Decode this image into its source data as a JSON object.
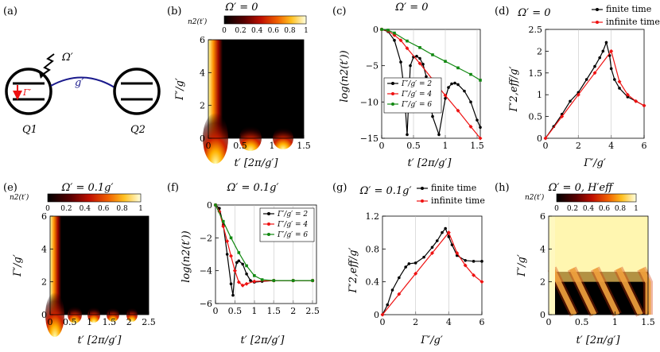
{
  "colors": {
    "black_series": "#000000",
    "red_series": "#ee1111",
    "green_series": "#118811",
    "coupler": "#1a1a8c"
  },
  "schematic": {
    "panel_label": "(a)",
    "omega_label": "Ω′",
    "coupling_label": "g′",
    "gamma_label": "Γ′",
    "qubit1_label": "Q1",
    "qubit2_label": "Q2"
  },
  "panels": {
    "b": {
      "label": "(b)",
      "title": "Ω′ = 0",
      "colorbar_label": "n2(t′)",
      "colorbar_ticks": [
        "0",
        "0.2",
        "0.4",
        "0.6",
        "0.8",
        "1"
      ],
      "ylabel": "Γ′/g′",
      "xlabel": "t′ [2π/g′]",
      "xticks": [
        "0",
        "0.5",
        "1",
        "1.5"
      ],
      "yticks": [
        "0",
        "2",
        "4",
        "6"
      ]
    },
    "c": {
      "label": "(c)",
      "title": "Ω′ = 0",
      "ylabel": "log(n2(t′))",
      "xlabel": "t′ [2π/g′]",
      "xticks": [
        "0",
        "0.5",
        "1",
        "1.5"
      ],
      "yticks": [
        "0",
        "−5",
        "−10",
        "−15"
      ],
      "legend": [
        "Γ′/g′ = 2",
        "Γ′/g′ = 4",
        "Γ′/g′ = 6"
      ]
    },
    "d": {
      "label": "(d)",
      "title": "Ω′ = 0",
      "ylabel": "Γ′2,eff/g′",
      "xlabel": "Γ′/g′",
      "xticks": [
        "0",
        "2",
        "4",
        "6"
      ],
      "yticks": [
        "0",
        "0.5",
        "1",
        "1.5",
        "2",
        "2.5"
      ],
      "legend": [
        "finite time",
        "infinite time"
      ]
    },
    "e": {
      "label": "(e)",
      "title": "Ω′ = 0.1g′",
      "colorbar_label": "n2(t′)",
      "colorbar_ticks": [
        "0",
        "0.2",
        "0.4",
        "0.6",
        "0.8",
        "1"
      ],
      "ylabel": "Γ′/g′",
      "xlabel": "t′ [2π/g′]",
      "xticks": [
        "0",
        "0.5",
        "1",
        "1.5",
        "2",
        "2.5"
      ],
      "yticks": [
        "0",
        "2",
        "4",
        "6"
      ]
    },
    "f": {
      "label": "(f)",
      "title": "Ω′ = 0.1g′",
      "ylabel": "log(n2(t′))",
      "xlabel": "t′ [2π/g′]",
      "xticks": [
        "0",
        "0.5",
        "1",
        "1.5",
        "2",
        "2.5"
      ],
      "yticks": [
        "0",
        "−2",
        "−4",
        "−6"
      ],
      "legend": [
        "Γ′/g′ = 2",
        "Γ′/g′ = 4",
        "Γ′/g′ = 6"
      ]
    },
    "g": {
      "label": "(g)",
      "title": "Ω′ = 0.1g′",
      "ylabel": "Γ′2,eff/g′",
      "xlabel": "Γ′/g′",
      "xticks": [
        "0",
        "2",
        "4",
        "6"
      ],
      "yticks": [
        "0",
        "0.4",
        "0.8",
        "1.2"
      ],
      "legend": [
        "finite time",
        "infinite time"
      ]
    },
    "h": {
      "label": "(h)",
      "title": "Ω′ = 0, H′eff",
      "colorbar_label": "n2(t′)",
      "colorbar_ticks": [
        "0",
        "0.2",
        "0.4",
        "0.6",
        "0.8",
        "1"
      ],
      "ylabel": "Γ′/g′",
      "xlabel": "t′ [2π/g′]",
      "xticks": [
        "0",
        "0.5",
        "1",
        "1.5"
      ],
      "yticks": [
        "0",
        "2",
        "4",
        "6"
      ]
    }
  },
  "chart_data": [
    {
      "panel": "c",
      "type": "line",
      "title": "Ω′ = 0",
      "xlabel": "t′ [2π/g′]",
      "ylabel": "log(n2(t′))",
      "xlim": [
        0,
        1.55
      ],
      "ylim": [
        -15,
        0
      ],
      "series": [
        {
          "name": "Γ′/g′ = 2",
          "x": [
            0,
            0.1,
            0.2,
            0.3,
            0.35,
            0.4,
            0.45,
            0.5,
            0.55,
            0.6,
            0.65,
            0.7,
            0.8,
            0.9,
            1.0,
            1.05,
            1.1,
            1.15,
            1.2,
            1.3,
            1.4,
            1.5,
            1.55
          ],
          "values": [
            0,
            -0.3,
            -1.5,
            -4.5,
            -8,
            -14.5,
            -5,
            -3.8,
            -3.7,
            -4.0,
            -4.8,
            -6.5,
            -12,
            -14.5,
            -9.5,
            -8,
            -7.5,
            -7.4,
            -7.6,
            -8.5,
            -10,
            -12.5,
            -13.5
          ]
        },
        {
          "name": "Γ′/g′ = 4",
          "x": [
            0,
            0.1,
            0.2,
            0.3,
            0.4,
            0.6,
            0.8,
            1.0,
            1.2,
            1.4,
            1.55
          ],
          "values": [
            0,
            -0.2,
            -0.8,
            -1.5,
            -2.6,
            -4.7,
            -6.9,
            -9.1,
            -11.2,
            -13.4,
            -15
          ]
        },
        {
          "name": "Γ′/g′ = 6",
          "x": [
            0,
            0.1,
            0.2,
            0.4,
            0.6,
            0.8,
            1.0,
            1.2,
            1.4,
            1.55
          ],
          "values": [
            0,
            -0.1,
            -0.5,
            -1.6,
            -2.5,
            -3.5,
            -4.4,
            -5.3,
            -6.2,
            -7.0
          ]
        }
      ]
    },
    {
      "panel": "d",
      "type": "scatter",
      "title": "Ω′ = 0",
      "xlabel": "Γ′/g′",
      "ylabel": "Γ′2,eff/g′",
      "xlim": [
        0,
        6
      ],
      "ylim": [
        0,
        2.5
      ],
      "series": [
        {
          "name": "finite time",
          "x": [
            0,
            0.5,
            1,
            1.5,
            2,
            2.5,
            3,
            3.3,
            3.5,
            3.7,
            3.9,
            4.0,
            4.2,
            4.5,
            5,
            5.5,
            6
          ],
          "values": [
            0,
            0.27,
            0.55,
            0.85,
            1.05,
            1.35,
            1.65,
            1.85,
            2.0,
            2.2,
            1.9,
            1.6,
            1.35,
            1.15,
            0.95,
            0.85,
            0.75
          ]
        },
        {
          "name": "infinite time",
          "x": [
            0,
            1,
            2,
            3,
            4,
            4.5,
            5,
            5.5,
            6
          ],
          "values": [
            0,
            0.5,
            1.0,
            1.5,
            2.0,
            1.3,
            1.0,
            0.85,
            0.75
          ]
        }
      ]
    },
    {
      "panel": "f",
      "type": "line",
      "title": "Ω′ = 0.1g′",
      "xlabel": "t′ [2π/g′]",
      "ylabel": "log(n2(t′))",
      "xlim": [
        0,
        2.6
      ],
      "ylim": [
        -6,
        0
      ],
      "series": [
        {
          "name": "Γ′/g′ = 2",
          "x": [
            0,
            0.1,
            0.2,
            0.3,
            0.4,
            0.45,
            0.5,
            0.55,
            0.6,
            0.7,
            0.8,
            0.9,
            1.0,
            1.2,
            1.5,
            2.0,
            2.5
          ],
          "values": [
            0,
            -0.2,
            -1.2,
            -3.0,
            -4.8,
            -5.5,
            -4.0,
            -3.5,
            -3.4,
            -3.6,
            -4.2,
            -4.6,
            -4.7,
            -4.65,
            -4.6,
            -4.6,
            -4.6
          ]
        },
        {
          "name": "Γ′/g′ = 4",
          "x": [
            0,
            0.1,
            0.2,
            0.3,
            0.4,
            0.5,
            0.6,
            0.7,
            0.8,
            1.0,
            1.5,
            2.0,
            2.5
          ],
          "values": [
            0,
            -0.4,
            -1.3,
            -2.2,
            -3.1,
            -4.0,
            -4.7,
            -4.9,
            -4.8,
            -4.65,
            -4.6,
            -4.6,
            -4.6
          ]
        },
        {
          "name": "Γ′/g′ = 6",
          "x": [
            0,
            0.2,
            0.4,
            0.6,
            0.8,
            1.0,
            1.2,
            1.5,
            2.0,
            2.5
          ],
          "values": [
            0,
            -1.0,
            -2.0,
            -2.9,
            -3.7,
            -4.3,
            -4.55,
            -4.6,
            -4.6,
            -4.6
          ]
        }
      ]
    },
    {
      "panel": "g",
      "type": "scatter",
      "title": "Ω′ = 0.1g′",
      "xlabel": "Γ′/g′",
      "ylabel": "Γ′2,eff/g′",
      "xlim": [
        0,
        6
      ],
      "ylim": [
        0,
        1.2
      ],
      "series": [
        {
          "name": "finite time",
          "x": [
            0,
            0.3,
            0.6,
            1.0,
            1.4,
            1.6,
            2.0,
            2.5,
            3.0,
            3.3,
            3.6,
            3.8,
            4.0,
            4.2,
            4.5,
            5,
            5.5,
            6
          ],
          "values": [
            0,
            0.12,
            0.3,
            0.45,
            0.58,
            0.62,
            0.63,
            0.7,
            0.82,
            0.9,
            1.0,
            1.05,
            0.95,
            0.85,
            0.72,
            0.66,
            0.65,
            0.65
          ]
        },
        {
          "name": "infinite time",
          "x": [
            0,
            1,
            2,
            3,
            4,
            4.5,
            5,
            5.5,
            6
          ],
          "values": [
            0,
            0.25,
            0.5,
            0.75,
            1.0,
            0.75,
            0.6,
            0.48,
            0.4
          ]
        }
      ]
    },
    {
      "panel": "b",
      "type": "heatmap",
      "title": "Ω′ = 0",
      "xlabel": "t′ [2π/g′]",
      "ylabel": "Γ′/g′",
      "xlim": [
        0,
        1.5
      ],
      "ylim": [
        0,
        6
      ],
      "zlim": [
        0,
        1
      ]
    },
    {
      "panel": "e",
      "type": "heatmap",
      "title": "Ω′ = 0.1g′",
      "xlabel": "t′ [2π/g′]",
      "ylabel": "Γ′/g′",
      "xlim": [
        0,
        2.5
      ],
      "ylim": [
        0,
        6
      ],
      "zlim": [
        0,
        1
      ]
    },
    {
      "panel": "h",
      "type": "heatmap",
      "title": "Ω′ = 0, H′eff",
      "xlabel": "t′ [2π/g′]",
      "ylabel": "Γ′/g′",
      "xlim": [
        0,
        1.5
      ],
      "ylim": [
        0,
        6
      ],
      "zlim": [
        0,
        1
      ]
    }
  ]
}
